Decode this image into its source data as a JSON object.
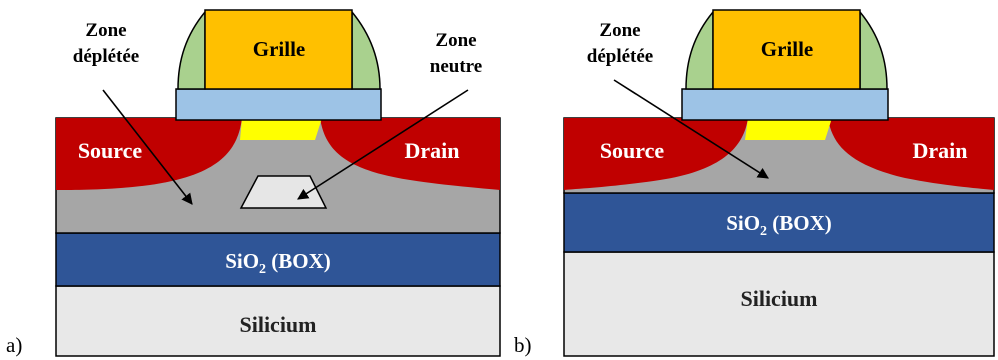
{
  "panel_a": {
    "letter": "a)",
    "gate": "Grille",
    "source": "Source",
    "drain": "Drain",
    "box": {
      "main": "SiO",
      "sub": "2",
      "rest": " (BOX)"
    },
    "substrate": "Silicium",
    "depleted": {
      "line1": "Zone",
      "line2": "déplétée"
    },
    "neutral": {
      "line1": "Zone",
      "line2": "neutre"
    }
  },
  "panel_b": {
    "letter": "b)",
    "gate": "Grille",
    "source": "Source",
    "drain": "Drain",
    "box": {
      "main": "SiO",
      "sub": "2",
      "rest": " (BOX)"
    },
    "substrate": "Silicium",
    "depleted": {
      "line1": "Zone",
      "line2": "déplétée"
    }
  },
  "colors": {
    "silicon_film": "#a6a6a6",
    "source_drain": "#c00000",
    "box": "#2f5597",
    "substrate": "#e8e8e8",
    "gate": "#ffc000",
    "spacer": "#a9d18e",
    "gate_oxide": "#9dc3e6",
    "channel": "#ffff00",
    "neutral_zone": "#e6e6e6"
  }
}
